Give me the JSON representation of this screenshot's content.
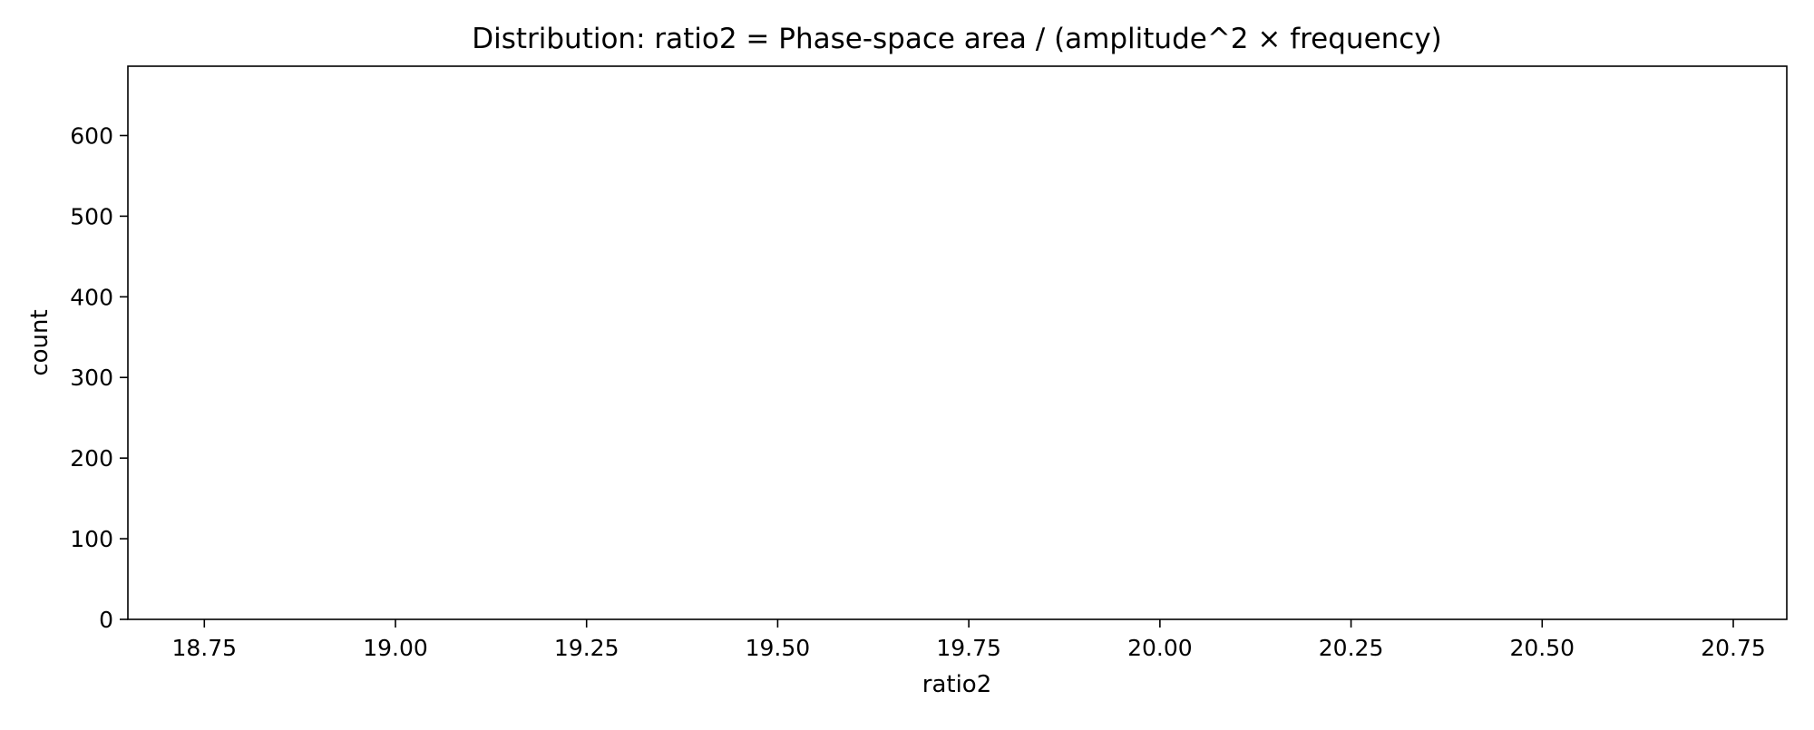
{
  "chart_data": {
    "type": "bar",
    "title": "Distribution: ratio2 = Phase-space area / (amplitude^2 × frequency)",
    "xlabel": "ratio2",
    "ylabel": "count",
    "xlim": [
      18.65,
      20.82
    ],
    "ylim": [
      0,
      686
    ],
    "x_ticks": [
      "18.75",
      "19.00",
      "19.25",
      "19.50",
      "19.75",
      "20.00",
      "20.25",
      "20.50",
      "20.75"
    ],
    "x_tick_values": [
      18.75,
      19.0,
      19.25,
      19.5,
      19.75,
      20.0,
      20.25,
      20.5,
      20.75
    ],
    "y_ticks": [
      "0",
      "100",
      "200",
      "300",
      "400",
      "500",
      "600"
    ],
    "y_tick_values": [
      0,
      100,
      200,
      300,
      400,
      500,
      600
    ],
    "bins": [],
    "counts": [],
    "grid": false,
    "legend": "none",
    "colors": {
      "axis": "#000000",
      "background": "#ffffff"
    }
  }
}
